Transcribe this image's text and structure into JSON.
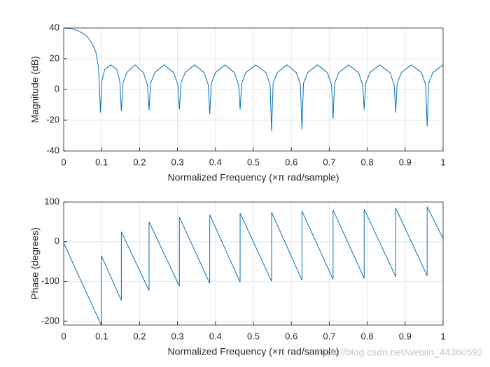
{
  "chart_data": [
    {
      "type": "line",
      "xlabel": "Normalized Frequency  (×π rad/sample)",
      "ylabel": "Magnitude (dB)",
      "xlim": [
        0,
        1
      ],
      "ylim": [
        -40,
        40
      ],
      "xticks": [
        0,
        0.1,
        0.2,
        0.3,
        0.4,
        0.5,
        0.6,
        0.7,
        0.8,
        0.9,
        1
      ],
      "yticks": [
        -40,
        -20,
        0,
        20,
        40
      ],
      "grid": true,
      "series": [
        {
          "color": "#0072bd",
          "x": [
            0,
            0.02,
            0.04,
            0.06,
            0.075,
            0.085,
            0.092,
            0.097,
            0.1,
            0.108,
            0.124,
            0.14,
            0.148,
            0.152,
            0.156,
            0.166,
            0.188,
            0.21,
            0.221,
            0.225,
            0.229,
            0.24,
            0.265,
            0.29,
            0.301,
            0.305,
            0.309,
            0.32,
            0.345,
            0.37,
            0.381,
            0.385,
            0.389,
            0.4,
            0.425,
            0.45,
            0.461,
            0.465,
            0.469,
            0.48,
            0.506,
            0.533,
            0.544,
            0.548,
            0.552,
            0.563,
            0.588,
            0.613,
            0.624,
            0.628,
            0.632,
            0.643,
            0.669,
            0.695,
            0.706,
            0.71,
            0.714,
            0.725,
            0.751,
            0.777,
            0.788,
            0.792,
            0.796,
            0.807,
            0.833,
            0.86,
            0.871,
            0.875,
            0.879,
            0.89,
            0.916,
            0.943,
            0.954,
            0.958,
            0.962,
            0.973,
            1
          ],
          "values": [
            40,
            39.5,
            38,
            35,
            30,
            24,
            14,
            -15,
            5,
            13,
            16,
            13,
            5,
            -14,
            4,
            11,
            16,
            11,
            3,
            -13.5,
            4,
            11,
            16,
            11,
            3,
            -13,
            4,
            11,
            16,
            11,
            3,
            -16,
            4,
            11,
            16,
            11,
            3,
            -13,
            4,
            11,
            16,
            11,
            3,
            -27,
            4,
            11,
            16,
            11,
            3,
            -26,
            4,
            11,
            16,
            11,
            3,
            -19,
            4,
            11,
            16,
            11,
            3,
            -13,
            4,
            11,
            16,
            11,
            3,
            -15,
            4,
            11,
            16,
            11,
            3,
            -24,
            4,
            11,
            16
          ]
        }
      ]
    },
    {
      "type": "line",
      "xlabel": "Normalized Frequency  (×π rad/sample)",
      "ylabel": "Phase (degrees)",
      "xlim": [
        0,
        1
      ],
      "ylim": [
        -210,
        100
      ],
      "xticks": [
        0,
        0.1,
        0.2,
        0.3,
        0.4,
        0.5,
        0.6,
        0.7,
        0.8,
        0.9,
        1
      ],
      "yticks": [
        -200,
        -100,
        0,
        100
      ],
      "grid": true,
      "series": [
        {
          "color": "#0072bd",
          "x": [
            0,
            0.099,
            0.099,
            0.152,
            0.152,
            0.225,
            0.225,
            0.305,
            0.305,
            0.385,
            0.385,
            0.465,
            0.465,
            0.548,
            0.548,
            0.628,
            0.628,
            0.71,
            0.71,
            0.792,
            0.792,
            0.875,
            0.875,
            0.958,
            0.958,
            1
          ],
          "values": [
            -3,
            -210,
            -35,
            -148,
            25,
            -123,
            50,
            -112,
            62,
            -105,
            68,
            -102,
            72,
            -100,
            74,
            -97,
            77,
            -95,
            80,
            -92,
            82,
            -88,
            85,
            -86,
            88,
            8
          ]
        }
      ]
    }
  ],
  "watermark": "https://blog.csdn.net/weixin_44360592"
}
